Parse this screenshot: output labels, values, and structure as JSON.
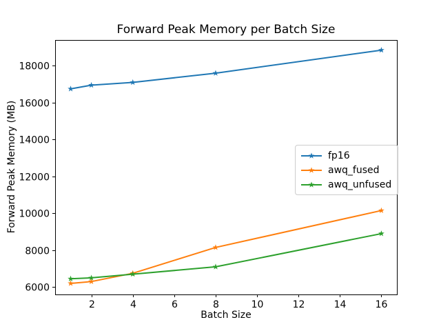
{
  "chart_data": {
    "type": "line",
    "title": "Forward Peak Memory per Batch Size",
    "xlabel": "Batch Size",
    "ylabel": "Forward Peak Memory (MB)",
    "x": [
      1,
      2,
      4,
      8,
      16
    ],
    "series": [
      {
        "name": "fp16",
        "color": "#1f77b4",
        "marker": "star",
        "values": [
          16750,
          16950,
          17100,
          17600,
          18850
        ]
      },
      {
        "name": "awq_fused",
        "color": "#ff7f0e",
        "marker": "star",
        "values": [
          6200,
          6300,
          6750,
          8150,
          10150
        ]
      },
      {
        "name": "awq_unfused",
        "color": "#2ca02c",
        "marker": "star",
        "values": [
          6450,
          6500,
          6700,
          7100,
          8900
        ]
      }
    ],
    "xlim": [
      0.25,
      16.75
    ],
    "ylim": [
      5600,
      19400
    ],
    "xticks": [
      2,
      4,
      6,
      8,
      10,
      12,
      14,
      16
    ],
    "yticks": [
      6000,
      8000,
      10000,
      12000,
      14000,
      16000,
      18000
    ],
    "grid": false,
    "legend_position": "center right"
  },
  "figure": {
    "background": "#ffffff",
    "spine_color": "#000000",
    "tick_color": "#000000",
    "legend_border_color": "#cccccc"
  }
}
